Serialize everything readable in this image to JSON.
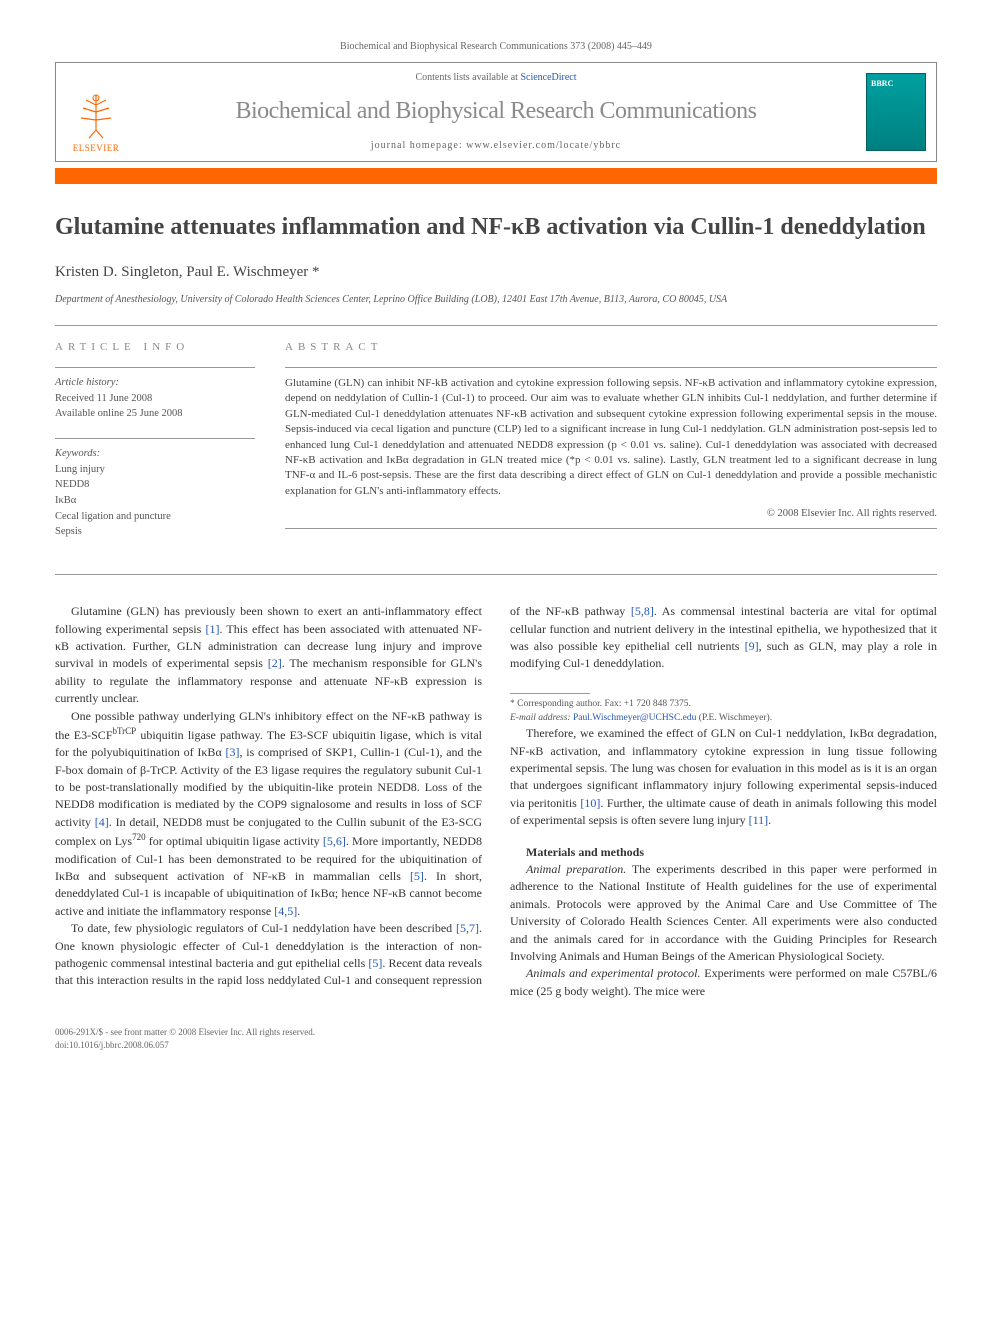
{
  "header": {
    "citation": "Biochemical and Biophysical Research Communications 373 (2008) 445–449",
    "contents_prefix": "Contents lists available at ",
    "contents_link": "ScienceDirect",
    "journal_name": "Biochemical and Biophysical Research Communications",
    "homepage_prefix": "journal homepage: ",
    "homepage_url": "www.elsevier.com/locate/ybbrc",
    "publisher": "ELSEVIER",
    "cover_label": "BBRC"
  },
  "article": {
    "title": "Glutamine attenuates inflammation and NF-κB activation via Cullin-1 deneddylation",
    "authors": "Kristen D. Singleton, Paul E. Wischmeyer *",
    "affiliation": "Department of Anesthesiology, University of Colorado Health Sciences Center, Leprino Office Building (LOB), 12401 East 17th Avenue, B113, Aurora, CO 80045, USA"
  },
  "info": {
    "heading": "ARTICLE INFO",
    "history_label": "Article history:",
    "received": "Received 11 June 2008",
    "online": "Available online 25 June 2008",
    "keywords_label": "Keywords:",
    "keywords": [
      "Lung injury",
      "NEDD8",
      "IκBα",
      "Cecal ligation and puncture",
      "Sepsis"
    ]
  },
  "abstract": {
    "heading": "ABSTRACT",
    "text": "Glutamine (GLN) can inhibit NF-kB activation and cytokine expression following sepsis. NF-κB activation and inflammatory cytokine expression, depend on neddylation of Cullin-1 (Cul-1) to proceed. Our aim was to evaluate whether GLN inhibits Cul-1 neddylation, and further determine if GLN-mediated Cul-1 deneddylation attenuates NF-κB activation and subsequent cytokine expression following experimental sepsis in the mouse. Sepsis-induced via cecal ligation and puncture (CLP) led to a significant increase in lung Cul-1 neddylation. GLN administration post-sepsis led to enhanced lung Cul-1 deneddylation and attenuated NEDD8 expression (p < 0.01 vs. saline). Cul-1 deneddylation was associated with decreased NF-κB activation and IκBα degradation in GLN treated mice (*p < 0.01 vs. saline). Lastly, GLN treatment led to a significant decrease in lung TNF-α and IL-6 post-sepsis. These are the first data describing a direct effect of GLN on Cul-1 deneddylation and provide a possible mechanistic explanation for GLN's anti-inflammatory effects.",
    "copyright": "© 2008 Elsevier Inc. All rights reserved."
  },
  "body": {
    "p1": "Glutamine (GLN) has previously been shown to exert an anti-inflammatory effect following experimental sepsis [1]. This effect has been associated with attenuated NF-κB activation. Further, GLN administration can decrease lung injury and improve survival in models of experimental sepsis [2]. The mechanism responsible for GLN's ability to regulate the inflammatory response and attenuate NF-κB expression is currently unclear.",
    "p2a": "One possible pathway underlying GLN's inhibitory effect on the NF-κB pathway is the E3-SCF",
    "p2_sup": "bTrCP",
    "p2b": " ubiquitin ligase pathway. The E3-SCF ubiquitin ligase, which is vital for the polyubiquitination of IκBα [3], is comprised of SKP1, Cullin-1 (Cul-1), and the F-box domain of β-TrCP. Activity of the E3 ligase requires the regulatory subunit Cul-1 to be post-translationally modified by the ubiquitin-like protein NEDD8. Loss of the NEDD8 modification is mediated by the COP9 signalosome and results in loss of SCF activity [4]. In detail, NEDD8 must be conjugated to the Cullin subunit of the E3-SCG complex on Lys",
    "p2_sup2": "720",
    "p2c": " for optimal ubiquitin ligase activity [5,6]. More importantly, NEDD8 modification of Cul-1 has been demonstrated to be required for the ubiquitination of IκBα and subsequent activation of NF-κB in mammalian cells [5]. In short, deneddylated Cul-1 is incapable of ubiquitination of IκBα; hence NF-κB cannot become active and initiate the inflammatory response [4,5].",
    "p3": "To date, few physiologic regulators of Cul-1 neddylation have been described [5,7]. One known physiologic effecter of Cul-1 deneddylation is the interaction of non-pathogenic commensal intestinal bacteria and gut epithelial cells [5]. Recent data reveals that this interaction results in the rapid loss neddylated Cul-1 and consequent repression of the NF-κB pathway [5,8]. As commensal intestinal bacteria are vital for optimal cellular function and nutrient delivery in the intestinal epithelia, we hypothesized that it was also possible key epithelial cell nutrients [9], such as GLN, may play a role in modifying Cul-1 deneddylation.",
    "p4": "Therefore, we examined the effect of GLN on Cul-1 neddylation, IκBα degradation, NF-κB activation, and inflammatory cytokine expression in lung tissue following experimental sepsis. The lung was chosen for evaluation in this model as is it is an organ that undergoes significant inflammatory injury following experimental sepsis-induced via peritonitis [10]. Further, the ultimate cause of death in animals following this model of experimental sepsis is often severe lung injury [11].",
    "methods_head": "Materials and methods",
    "m1_label": "Animal preparation.",
    "m1": " The experiments described in this paper were performed in adherence to the National Institute of Health guidelines for the use of experimental animals. Protocols were approved by the Animal Care and Use Committee of The University of Colorado Health Sciences Center. All experiments were also conducted and the animals cared for in accordance with the Guiding Principles for Research Involving Animals and Human Beings of the American Physiological Society.",
    "m2_label": "Animals and experimental protocol.",
    "m2": " Experiments were performed on male C57BL/6 mice (25 g body weight). The mice were"
  },
  "footnote": {
    "corr": "* Corresponding author. Fax: +1 720 848 7375.",
    "email_label": "E-mail address: ",
    "email": "Paul.Wischmeyer@UCHSC.edu",
    "email_person": " (P.E. Wischmeyer)."
  },
  "bottom": {
    "left1": "0006-291X/$ - see front matter © 2008 Elsevier Inc. All rights reserved.",
    "left2": "doi:10.1016/j.bbrc.2008.06.057"
  },
  "colors": {
    "accent": "#ff6600",
    "link": "#2558b3",
    "heading_gray": "#8b8b8b",
    "cover": "#008080"
  }
}
